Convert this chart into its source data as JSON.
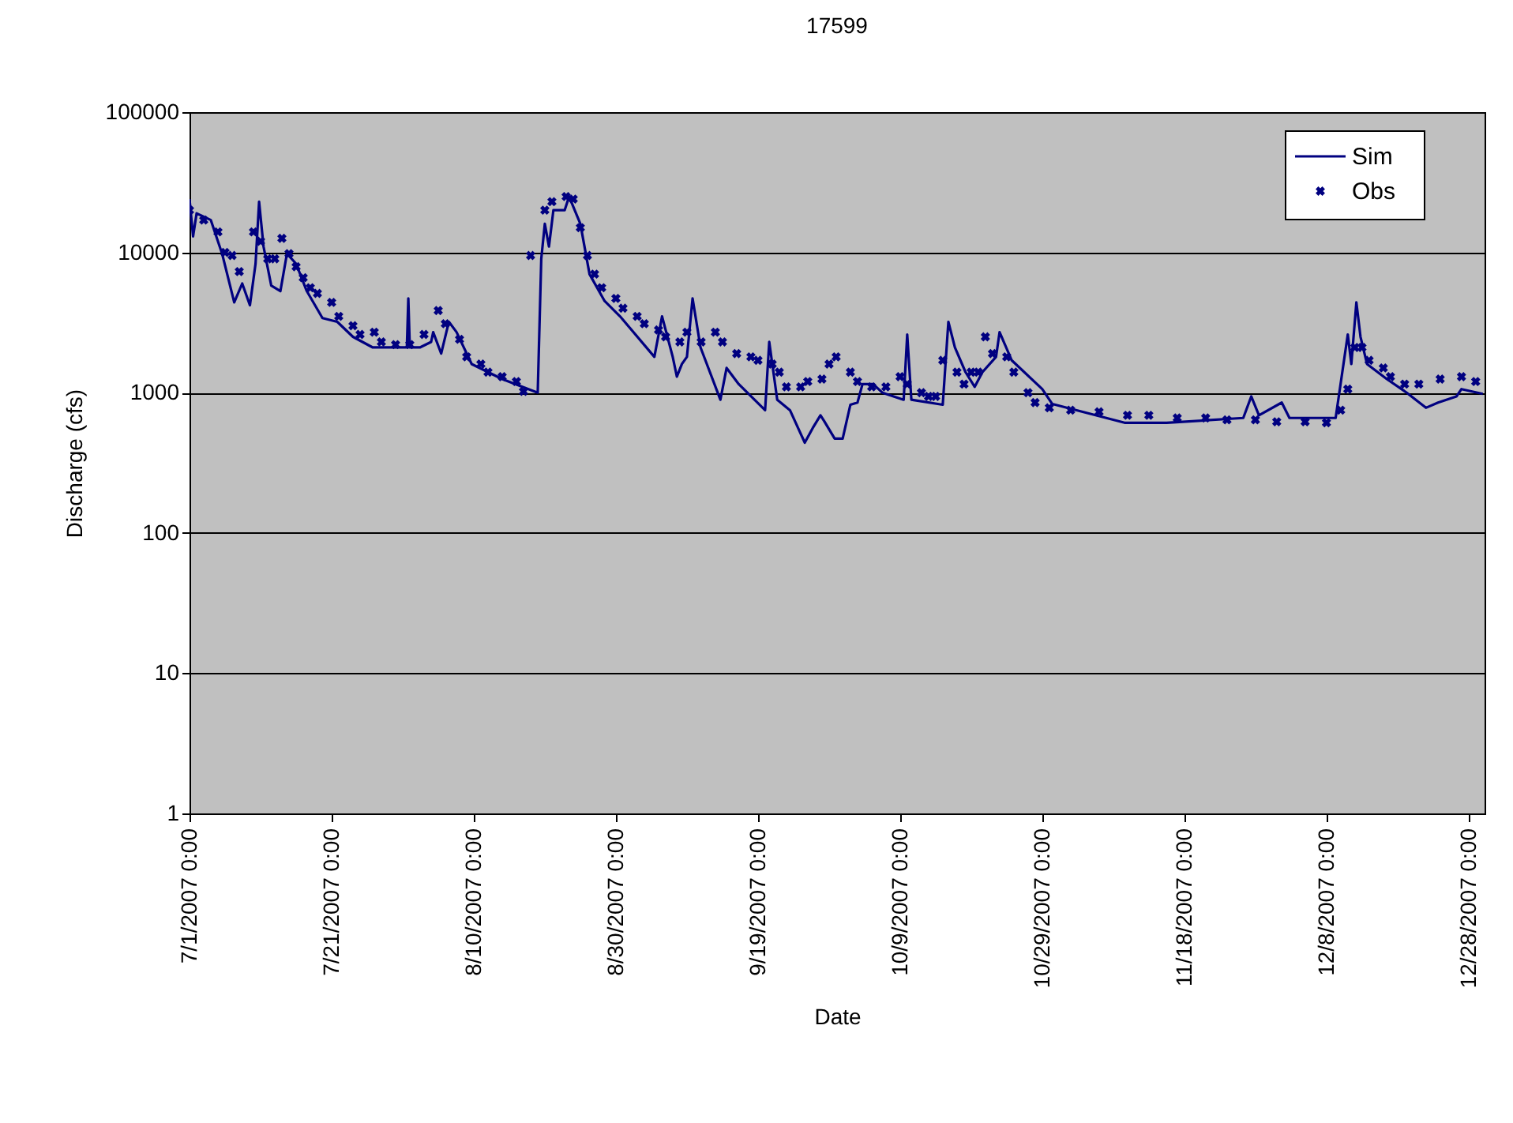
{
  "chart_data": {
    "type": "line",
    "title": "17599",
    "xlabel": "Date",
    "ylabel": "Discharge (cfs)",
    "xlim": [
      "2007-07-01",
      "2007-12-30T06:00"
    ],
    "xticks": [
      {
        "value": "2007-07-01",
        "label": "7/1/2007 0:00"
      },
      {
        "value": "2007-07-21",
        "label": "7/21/2007 0:00"
      },
      {
        "value": "2007-08-10",
        "label": "8/10/2007 0:00"
      },
      {
        "value": "2007-08-30",
        "label": "8/30/2007 0:00"
      },
      {
        "value": "2007-09-19",
        "label": "9/19/2007 0:00"
      },
      {
        "value": "2007-10-09",
        "label": "10/9/2007 0:00"
      },
      {
        "value": "2007-10-29",
        "label": "10/29/2007 0:00"
      },
      {
        "value": "2007-11-18",
        "label": "11/18/2007 0:00"
      },
      {
        "value": "2007-12-08",
        "label": "12/8/2007 0:00"
      },
      {
        "value": "2007-12-28",
        "label": "12/28/2007 0:00"
      }
    ],
    "ylim": [
      1,
      100000
    ],
    "yticks": [
      1,
      10,
      100,
      1000,
      10000,
      100000
    ],
    "log": "y",
    "grid": "y",
    "legend": "top right",
    "series": [
      {
        "name": "Sim",
        "type": "line",
        "color": "#000080",
        "line_style": "solid",
        "marker": "none",
        "x": [
          "2007-07-01",
          "2007-07-01T12:00",
          "2007-07-02",
          "2007-07-04",
          "2007-07-05T14:00",
          "2007-07-07T07:00",
          "2007-07-08T10:00",
          "2007-07-09T12:00",
          "2007-07-10T07:00",
          "2007-07-10T19:00",
          "2007-07-11T10:00",
          "2007-07-12T12:00",
          "2007-07-13T19:00",
          "2007-07-14T17:00",
          "2007-07-16",
          "2007-07-17T12:00",
          "2007-07-19T17:00",
          "2007-07-21T19:00",
          "2007-07-24",
          "2007-07-26T19:00",
          "2007-07-31T14:00",
          "2007-07-31T19:00",
          "2007-08-01",
          "2007-08-02T10:00",
          "2007-08-04",
          "2007-08-04T07:00",
          "2007-08-05T10:00",
          "2007-08-06T12:00",
          "2007-08-07T14:00",
          "2007-08-09T17:00",
          "2007-08-14",
          "2007-08-19",
          "2007-08-19T12:00",
          "2007-08-20",
          "2007-08-20T14:00",
          "2007-08-21T05:00",
          "2007-08-22T19:00",
          "2007-08-23T10:00",
          "2007-08-25",
          "2007-08-26T07:00",
          "2007-08-28T10:00",
          "2007-08-30T14:00",
          "2007-09-04T10:00",
          "2007-09-05T12:00",
          "2007-09-07",
          "2007-09-07T14:00",
          "2007-09-08T07:00",
          "2007-09-09",
          "2007-09-09T19:00",
          "2007-09-10T22:00",
          "2007-09-13T17:00",
          "2007-09-14T14:00",
          "2007-09-16T07:00",
          "2007-09-20",
          "2007-09-20T14:00",
          "2007-09-21T17:00",
          "2007-09-23T12:00",
          "2007-09-25T14:00",
          "2007-09-26T17:00",
          "2007-09-27T19:00",
          "2007-09-28T07:00",
          "2007-09-29T19:00",
          "2007-09-30T22:00",
          "2007-10-02",
          "2007-10-03",
          "2007-10-03T17:00",
          "2007-10-05T05:00",
          "2007-10-06T12:00",
          "2007-10-09T12:00",
          "2007-10-10",
          "2007-10-10T14:00",
          "2007-10-15",
          "2007-10-15T19:00",
          "2007-10-16T17:00",
          "2007-10-18T05:00",
          "2007-10-19T12:00",
          "2007-10-20T14:00",
          "2007-10-22T12:00",
          "2007-10-23",
          "2007-10-24T17:00",
          "2007-10-29",
          "2007-10-30T10:00",
          "2007-11-09T14:00",
          "2007-11-15T12:00",
          "2007-11-26T07:00",
          "2007-11-27T10:00",
          "2007-11-28T12:00",
          "2007-12-01T17:00",
          "2007-12-02T19:00",
          "2007-12-09T07:00",
          "2007-12-11",
          "2007-12-11T12:00",
          "2007-12-12T05:00",
          "2007-12-12T19:00",
          "2007-12-13T17:00",
          "2007-12-16T12:00",
          "2007-12-19T07:00",
          "2007-12-22",
          "2007-12-23T17:00",
          "2007-12-26T07:00",
          "2007-12-27",
          "2007-12-30"
        ],
        "values": [
          24000,
          13000,
          19000,
          17000,
          9800,
          4400,
          6000,
          4200,
          8300,
          23000,
          11000,
          5800,
          5300,
          9800,
          8300,
          5300,
          3400,
          3200,
          2500,
          2100,
          2100,
          4700,
          2100,
          2100,
          2300,
          2700,
          1900,
          3200,
          2700,
          1600,
          1250,
          1000,
          9000,
          16000,
          11000,
          20000,
          20000,
          25000,
          16000,
          7000,
          4500,
          3500,
          1800,
          3500,
          1800,
          1300,
          1600,
          1800,
          4700,
          2100,
          890,
          1500,
          1150,
          750,
          2300,
          890,
          750,
          440,
          560,
          690,
          630,
          470,
          470,
          820,
          850,
          1150,
          1150,
          1000,
          890,
          2600,
          890,
          820,
          3200,
          2100,
          1400,
          1100,
          1400,
          1800,
          2700,
          1700,
          1060,
          830,
          610,
          610,
          660,
          940,
          690,
          850,
          660,
          660,
          2600,
          1600,
          4400,
          2500,
          1600,
          1250,
          1000,
          780,
          850,
          940,
          1060,
          980
        ]
      },
      {
        "name": "Obs",
        "type": "scatter",
        "color": "#000080",
        "marker": "cross",
        "x": [
          "2007-07-01",
          "2007-07-03",
          "2007-07-05",
          "2007-07-06",
          "2007-07-07",
          "2007-07-08",
          "2007-07-10",
          "2007-07-11",
          "2007-07-12",
          "2007-07-13",
          "2007-07-14",
          "2007-07-15",
          "2007-07-16",
          "2007-07-17",
          "2007-07-18",
          "2007-07-19",
          "2007-07-21",
          "2007-07-22",
          "2007-07-24",
          "2007-07-25",
          "2007-07-27",
          "2007-07-28",
          "2007-07-30",
          "2007-08-01",
          "2007-08-03",
          "2007-08-05",
          "2007-08-06",
          "2007-08-08",
          "2007-08-09",
          "2007-08-11",
          "2007-08-12",
          "2007-08-14",
          "2007-08-16",
          "2007-08-17",
          "2007-08-18",
          "2007-08-20",
          "2007-08-21",
          "2007-08-23",
          "2007-08-24",
          "2007-08-25",
          "2007-08-26",
          "2007-08-27",
          "2007-08-28",
          "2007-08-30",
          "2007-08-31",
          "2007-09-02",
          "2007-09-03",
          "2007-09-05",
          "2007-09-06",
          "2007-09-08",
          "2007-09-09",
          "2007-09-11",
          "2007-09-13",
          "2007-09-14",
          "2007-09-16",
          "2007-09-18",
          "2007-09-19",
          "2007-09-21",
          "2007-09-22",
          "2007-09-23",
          "2007-09-25",
          "2007-09-26",
          "2007-09-28",
          "2007-09-29",
          "2007-09-30",
          "2007-10-02",
          "2007-10-03",
          "2007-10-05",
          "2007-10-07",
          "2007-10-09",
          "2007-10-10",
          "2007-10-12",
          "2007-10-13",
          "2007-10-14",
          "2007-10-15",
          "2007-10-17",
          "2007-10-18",
          "2007-10-19",
          "2007-10-20",
          "2007-10-21",
          "2007-10-22",
          "2007-10-24",
          "2007-10-25",
          "2007-10-27",
          "2007-10-28",
          "2007-10-30",
          "2007-11-02",
          "2007-11-06",
          "2007-11-10",
          "2007-11-13",
          "2007-11-17",
          "2007-11-21",
          "2007-11-24",
          "2007-11-28",
          "2007-12-01",
          "2007-12-05",
          "2007-12-08",
          "2007-12-10",
          "2007-12-11",
          "2007-12-12",
          "2007-12-13",
          "2007-12-14",
          "2007-12-16",
          "2007-12-17",
          "2007-12-19",
          "2007-12-21",
          "2007-12-24",
          "2007-12-27",
          "2007-12-29"
        ],
        "values": [
          20000,
          17000,
          14000,
          10000,
          9500,
          7300,
          14000,
          12000,
          9000,
          9000,
          12600,
          9800,
          7900,
          6600,
          5600,
          5100,
          4400,
          3500,
          3000,
          2600,
          2700,
          2300,
          2200,
          2200,
          2600,
          3850,
          3100,
          2400,
          1800,
          1600,
          1400,
          1300,
          1200,
          1020,
          9500,
          20000,
          23000,
          25000,
          24000,
          15000,
          9500,
          7000,
          5600,
          4700,
          4000,
          3500,
          3100,
          2800,
          2500,
          2300,
          2700,
          2300,
          2700,
          2300,
          1900,
          1800,
          1700,
          1600,
          1400,
          1100,
          1100,
          1200,
          1250,
          1600,
          1800,
          1400,
          1200,
          1100,
          1100,
          1300,
          1150,
          1000,
          940,
          940,
          1700,
          1400,
          1150,
          1400,
          1400,
          2500,
          1900,
          1800,
          1400,
          1000,
          850,
          780,
          750,
          730,
          690,
          690,
          660,
          660,
          640,
          640,
          620,
          620,
          610,
          750,
          1060,
          2100,
          2100,
          1700,
          1500,
          1300,
          1150,
          1150,
          1250,
          1300,
          1200
        ]
      }
    ]
  }
}
